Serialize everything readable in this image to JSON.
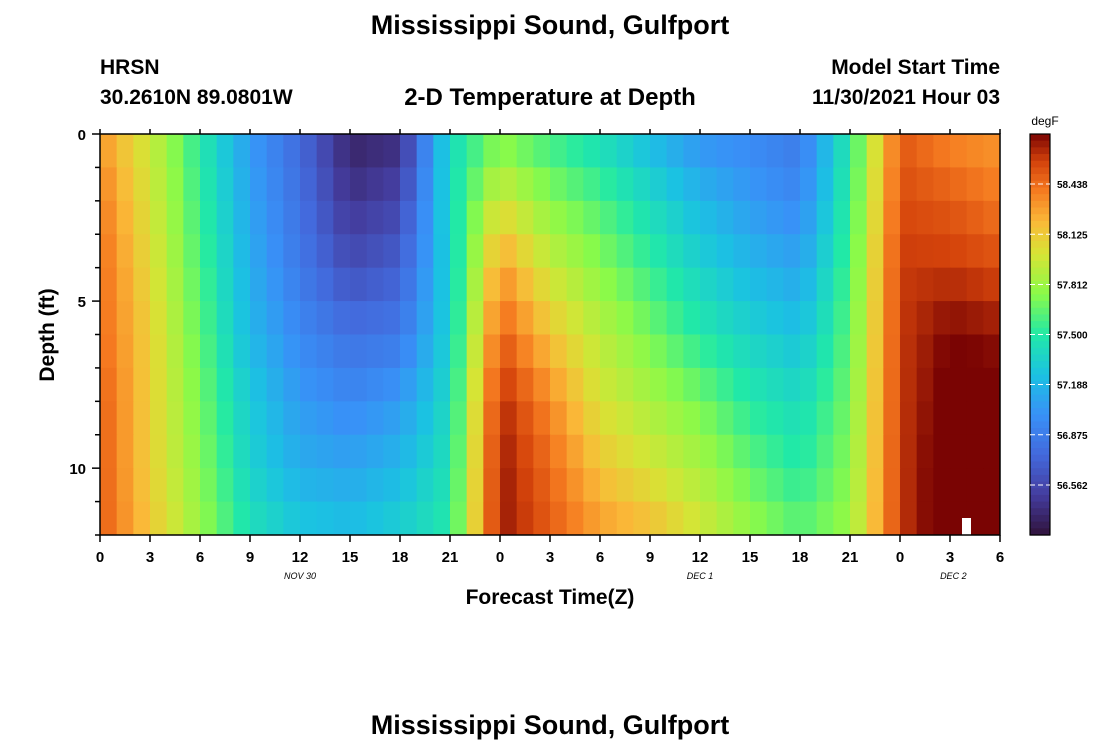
{
  "header": {
    "title": "Mississippi Sound, Gulfport",
    "station": "HRSN",
    "coords": "30.2610N  89.0801W",
    "subtitle": "2-D Temperature at Depth",
    "model_start_label": "Model Start Time",
    "model_start_value": "11/30/2021 Hour 03",
    "title_repeat": "Mississippi Sound, Gulfport"
  },
  "chart_data": {
    "type": "heatmap",
    "title": "2-D Temperature at Depth",
    "xlabel": "Forecast Time(Z)",
    "ylabel": "Depth (ft)",
    "x_ticks": [
      "0",
      "3",
      "6",
      "9",
      "12",
      "15",
      "18",
      "21",
      "0",
      "3",
      "6",
      "9",
      "12",
      "15",
      "18",
      "21",
      "0",
      "3",
      "6"
    ],
    "date_labels": [
      "NOV 30",
      "DEC 1",
      "DEC 2"
    ],
    "y_ticks": [
      "0",
      "5",
      "10"
    ],
    "x_hours": [
      0,
      3,
      6,
      9,
      12,
      15,
      18,
      21,
      24,
      27,
      30,
      33,
      36,
      39,
      42,
      45,
      48,
      51,
      54
    ],
    "depths_ft": [
      0,
      2,
      4,
      6,
      8,
      10,
      12
    ],
    "xlim_hours": [
      0,
      54
    ],
    "ylim_ft": [
      0,
      12
    ],
    "temperature_degF": [
      [
        58.3,
        57.95,
        57.5,
        57.05,
        56.75,
        56.35,
        56.4,
        57.4,
        57.7,
        57.55,
        57.4,
        57.2,
        57.0,
        56.95,
        56.85,
        57.5,
        58.5,
        58.35,
        58.3
      ],
      [
        58.4,
        58.0,
        57.55,
        57.1,
        56.8,
        56.45,
        56.55,
        57.4,
        58.0,
        57.75,
        57.6,
        57.4,
        57.2,
        57.05,
        56.95,
        57.55,
        58.55,
        58.5,
        58.4
      ],
      [
        58.45,
        58.05,
        57.6,
        57.15,
        56.85,
        56.6,
        56.7,
        57.35,
        58.3,
        57.95,
        57.75,
        57.55,
        57.35,
        57.2,
        57.1,
        57.6,
        58.6,
        58.6,
        58.55
      ],
      [
        58.45,
        58.1,
        57.65,
        57.2,
        56.95,
        56.8,
        56.85,
        57.35,
        58.5,
        58.15,
        57.9,
        57.7,
        57.5,
        57.35,
        57.25,
        57.65,
        58.6,
        58.75,
        58.7
      ],
      [
        58.5,
        58.1,
        57.7,
        57.3,
        57.05,
        56.95,
        57.05,
        57.4,
        58.65,
        58.35,
        58.0,
        57.85,
        57.7,
        57.5,
        57.4,
        57.7,
        58.6,
        58.8,
        58.8
      ],
      [
        58.5,
        58.1,
        57.75,
        57.35,
        57.15,
        57.1,
        57.2,
        57.45,
        58.7,
        58.45,
        58.15,
        58.0,
        57.85,
        57.65,
        57.5,
        57.75,
        58.6,
        58.85,
        58.85
      ],
      [
        58.5,
        58.15,
        57.8,
        57.45,
        57.3,
        57.25,
        57.35,
        57.5,
        58.7,
        58.5,
        58.3,
        58.2,
        58.0,
        57.8,
        57.65,
        57.8,
        58.6,
        58.85,
        58.85
      ]
    ],
    "colorbar": {
      "unit": "degF",
      "labels": [
        "58.438",
        "58.125",
        "57.812",
        "57.500",
        "57.188",
        "56.875",
        "56.562"
      ],
      "range": [
        56.25,
        58.75
      ]
    },
    "grid": false,
    "legend": "colorbar-right"
  }
}
